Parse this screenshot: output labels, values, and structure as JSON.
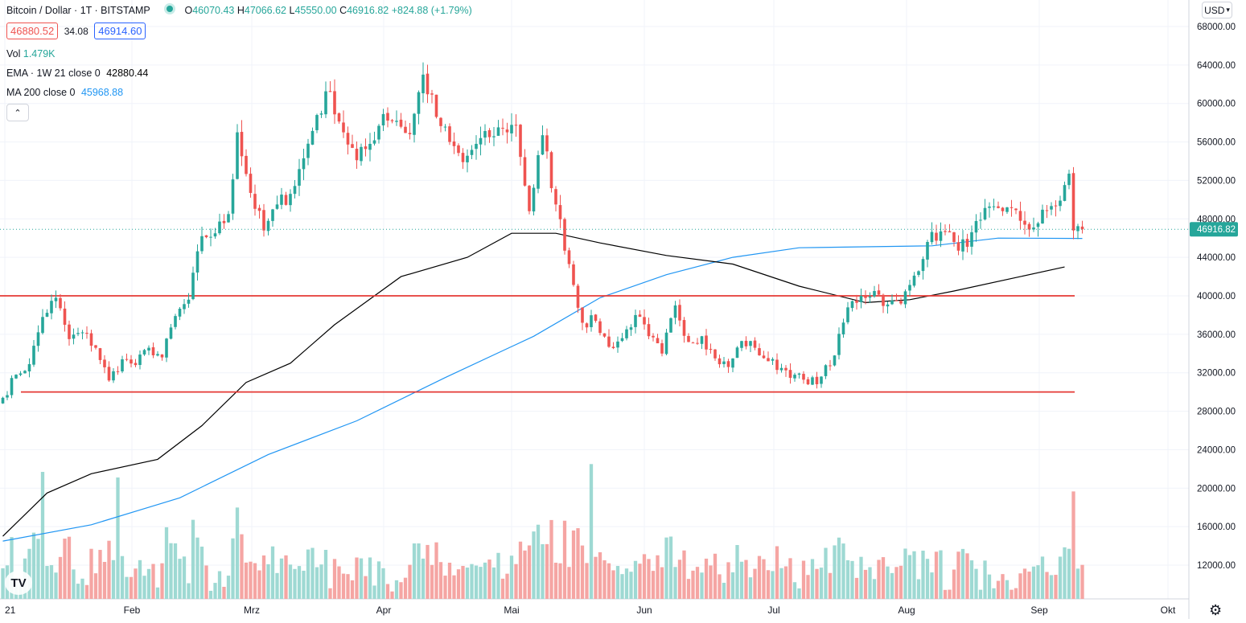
{
  "header": {
    "symbol": "Bitcoin / Dollar · 1T · BITSTAMP",
    "open_label": "O",
    "open": "46070.43",
    "high_label": "H",
    "high": "47066.62",
    "low_label": "L",
    "low": "45550.00",
    "close_label": "C",
    "close": "46916.82",
    "change": "+824.88 (+1.79%)",
    "bid": "46880.52",
    "spread": "34.08",
    "ask": "46914.60"
  },
  "indicators": {
    "vol_label": "Vol",
    "vol_value": "1.479K",
    "ema_label": "EMA · 1W 21 close 0",
    "ema_value": "42880.44",
    "ma_label": "MA 200 close 0",
    "ma_value": "45968.88"
  },
  "controls": {
    "currency": "USD",
    "collapse_icon": "chevron-up-icon",
    "settings_icon": "gear-icon",
    "logo": "TV"
  },
  "colors": {
    "up": "#26a69a",
    "down": "#ef5350",
    "vol_up": "#9ed9d3",
    "vol_down": "#f5a5a3",
    "ema": "#000000",
    "ma": "#2196f3",
    "hline": "#e53935",
    "last_price": "#26a69a",
    "grid": "#f0f3fa"
  },
  "chart_data": {
    "type": "candlestick",
    "title": "Bitcoin / Dollar · 1T · BITSTAMP",
    "y_ticks": [
      "68000.00",
      "64000.00",
      "60000.00",
      "56000.00",
      "52000.00",
      "48000.00",
      "44000.00",
      "40000.00",
      "36000.00",
      "32000.00",
      "28000.00",
      "24000.00",
      "20000.00",
      "16000.00",
      "12000.00"
    ],
    "ylim": [
      9000,
      69500
    ],
    "x_tick_labels": [
      "21",
      "Feb",
      "Mrz",
      "Apr",
      "Mai",
      "Jun",
      "Jul",
      "Aug",
      "Sep",
      "Okt"
    ],
    "last_price": "46916.82",
    "horizontal_levels": [
      40000,
      30000
    ],
    "candle_anchors_close": [
      [
        0,
        29400
      ],
      [
        3,
        31800
      ],
      [
        6,
        32900
      ],
      [
        9,
        37800
      ],
      [
        12,
        39800
      ],
      [
        15,
        35500
      ],
      [
        18,
        36200
      ],
      [
        21,
        34600
      ],
      [
        24,
        31200
      ],
      [
        27,
        33400
      ],
      [
        30,
        32800
      ],
      [
        33,
        34600
      ],
      [
        36,
        33600
      ],
      [
        39,
        37900
      ],
      [
        42,
        39600
      ],
      [
        45,
        46200
      ],
      [
        48,
        46500
      ],
      [
        51,
        48500
      ],
      [
        53,
        57000
      ],
      [
        56,
        50700
      ],
      [
        59,
        46800
      ],
      [
        62,
        49500
      ],
      [
        65,
        50600
      ],
      [
        68,
        54300
      ],
      [
        71,
        58800
      ],
      [
        74,
        61200
      ],
      [
        77,
        57000
      ],
      [
        80,
        54100
      ],
      [
        83,
        55800
      ],
      [
        86,
        58900
      ],
      [
        89,
        58200
      ],
      [
        92,
        56800
      ],
      [
        95,
        63000
      ],
      [
        98,
        58600
      ],
      [
        101,
        56000
      ],
      [
        104,
        53900
      ],
      [
        107,
        55800
      ],
      [
        110,
        56500
      ],
      [
        113,
        57400
      ],
      [
        116,
        57700
      ],
      [
        119,
        48800
      ],
      [
        122,
        56700
      ],
      [
        125,
        49500
      ],
      [
        128,
        43300
      ],
      [
        131,
        37200
      ],
      [
        134,
        37400
      ],
      [
        137,
        34700
      ],
      [
        140,
        35600
      ],
      [
        143,
        38000
      ],
      [
        146,
        35800
      ],
      [
        149,
        34000
      ],
      [
        152,
        39000
      ],
      [
        155,
        35200
      ],
      [
        158,
        35800
      ],
      [
        161,
        33500
      ],
      [
        164,
        32600
      ],
      [
        167,
        35300
      ],
      [
        170,
        34600
      ],
      [
        173,
        33200
      ],
      [
        176,
        32500
      ],
      [
        179,
        31800
      ],
      [
        182,
        30800
      ],
      [
        185,
        31600
      ],
      [
        188,
        33800
      ],
      [
        191,
        38800
      ],
      [
        194,
        40000
      ],
      [
        197,
        40500
      ],
      [
        200,
        39100
      ],
      [
        203,
        39200
      ],
      [
        206,
        42100
      ],
      [
        209,
        45600
      ],
      [
        212,
        46700
      ],
      [
        215,
        45600
      ],
      [
        218,
        45100
      ],
      [
        221,
        47900
      ],
      [
        224,
        49300
      ],
      [
        227,
        49200
      ],
      [
        230,
        47800
      ],
      [
        233,
        47100
      ],
      [
        236,
        48900
      ],
      [
        239,
        49900
      ],
      [
        241,
        52700
      ],
      [
        242,
        46800
      ],
      [
        244,
        46916
      ]
    ],
    "volume_note": "volume in K BTC",
    "ema_points": [
      [
        0,
        15000
      ],
      [
        10,
        19500
      ],
      [
        20,
        21500
      ],
      [
        35,
        23000
      ],
      [
        45,
        26500
      ],
      [
        55,
        31000
      ],
      [
        65,
        33000
      ],
      [
        75,
        37000
      ],
      [
        90,
        42000
      ],
      [
        105,
        44000
      ],
      [
        115,
        46500
      ],
      [
        125,
        46500
      ],
      [
        135,
        45500
      ],
      [
        150,
        44200
      ],
      [
        165,
        43300
      ],
      [
        180,
        41000
      ],
      [
        195,
        39300
      ],
      [
        205,
        39600
      ],
      [
        215,
        40500
      ],
      [
        230,
        42000
      ],
      [
        240,
        43000
      ]
    ],
    "ma_points": [
      [
        0,
        14500
      ],
      [
        20,
        16200
      ],
      [
        40,
        19000
      ],
      [
        60,
        23500
      ],
      [
        80,
        27000
      ],
      [
        100,
        31500
      ],
      [
        120,
        35800
      ],
      [
        135,
        39800
      ],
      [
        150,
        42200
      ],
      [
        165,
        44000
      ],
      [
        180,
        45000
      ],
      [
        195,
        45100
      ],
      [
        210,
        45200
      ],
      [
        225,
        46000
      ],
      [
        244,
        45968
      ]
    ]
  }
}
